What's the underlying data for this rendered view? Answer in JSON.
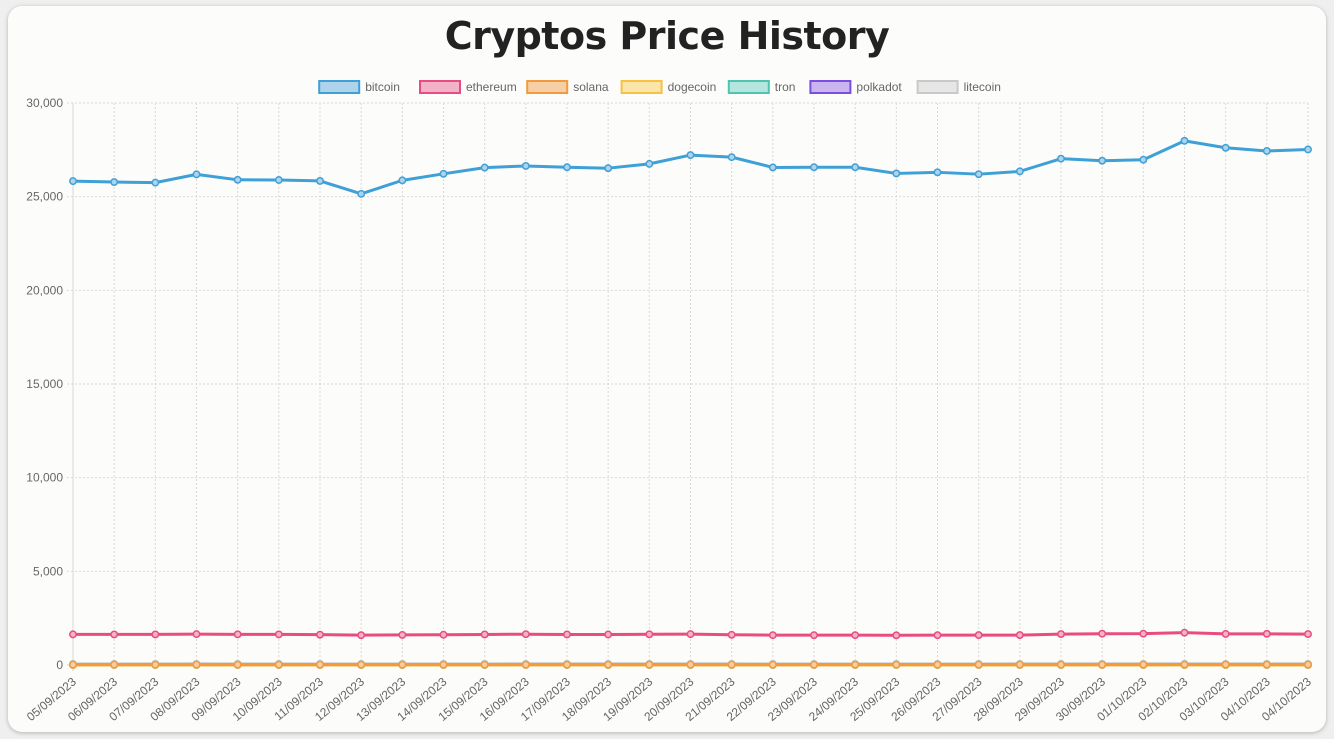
{
  "chart_data": {
    "type": "line",
    "title": "Cryptos Price History",
    "xlabel": "",
    "ylabel": "",
    "ylim": [
      0,
      30000
    ],
    "yticks": [
      "0",
      "5,000",
      "10,000",
      "15,000",
      "20,000",
      "25,000",
      "30,000"
    ],
    "ytick_values": [
      0,
      5000,
      10000,
      15000,
      20000,
      25000,
      30000
    ],
    "grid": true,
    "legend_position": "top",
    "categories": [
      "05/09/2023",
      "06/09/2023",
      "07/09/2023",
      "08/09/2023",
      "09/09/2023",
      "10/09/2023",
      "11/09/2023",
      "12/09/2023",
      "13/09/2023",
      "14/09/2023",
      "15/09/2023",
      "16/09/2023",
      "17/09/2023",
      "18/09/2023",
      "19/09/2023",
      "20/09/2023",
      "21/09/2023",
      "22/09/2023",
      "23/09/2023",
      "24/09/2023",
      "25/09/2023",
      "26/09/2023",
      "27/09/2023",
      "28/09/2023",
      "29/09/2023",
      "30/09/2023",
      "01/10/2023",
      "02/10/2023",
      "03/10/2023",
      "04/10/2023",
      "04/10/2023"
    ],
    "series": [
      {
        "name": "bitcoin",
        "color": "#3ea0d6",
        "fill": "#aed3ea",
        "values": [
          25830,
          25780,
          25750,
          26190,
          25900,
          25890,
          25840,
          25150,
          25870,
          26220,
          26550,
          26640,
          26570,
          26520,
          26750,
          27220,
          27110,
          26560,
          26570,
          26570,
          26240,
          26300,
          26200,
          26350,
          27030,
          26920,
          26970,
          27980,
          27610,
          27440,
          27520
        ]
      },
      {
        "name": "ethereum",
        "color": "#e84c82",
        "fill": "#f2b3c8",
        "values": [
          1635,
          1632,
          1632,
          1648,
          1636,
          1634,
          1620,
          1592,
          1606,
          1615,
          1631,
          1644,
          1630,
          1628,
          1640,
          1648,
          1613,
          1594,
          1593,
          1594,
          1587,
          1592,
          1598,
          1598,
          1651,
          1670,
          1672,
          1726,
          1660,
          1664,
          1651
        ]
      },
      {
        "name": "solana",
        "color": "#f29a3c",
        "fill": "#f7cfa6",
        "values": [
          20,
          20,
          19,
          20,
          19,
          19,
          18,
          18,
          18,
          19,
          19,
          19,
          19,
          19,
          20,
          20,
          20,
          19,
          19,
          19,
          19,
          20,
          21,
          22,
          22,
          22,
          23,
          24,
          23,
          23,
          23
        ]
      },
      {
        "name": "dogecoin",
        "color": "#f5c242",
        "fill": "#fbe5a8",
        "values": [
          0.06,
          0.06,
          0.06,
          0.06,
          0.06,
          0.06,
          0.06,
          0.06,
          0.06,
          0.06,
          0.06,
          0.06,
          0.06,
          0.06,
          0.06,
          0.06,
          0.06,
          0.06,
          0.06,
          0.06,
          0.06,
          0.06,
          0.06,
          0.06,
          0.06,
          0.06,
          0.06,
          0.06,
          0.06,
          0.06,
          0.06
        ]
      },
      {
        "name": "tron",
        "color": "#4fc4b0",
        "fill": "#b4e6dd",
        "values": [
          0.08,
          0.08,
          0.08,
          0.08,
          0.08,
          0.08,
          0.08,
          0.08,
          0.08,
          0.08,
          0.08,
          0.08,
          0.08,
          0.08,
          0.08,
          0.08,
          0.08,
          0.08,
          0.08,
          0.08,
          0.09,
          0.09,
          0.09,
          0.09,
          0.09,
          0.09,
          0.09,
          0.09,
          0.09,
          0.09,
          0.09
        ]
      },
      {
        "name": "polkadot",
        "color": "#7b4de0",
        "fill": "#c9b5f0",
        "values": [
          4.3,
          4.3,
          4.2,
          4.3,
          4.2,
          4.2,
          4.1,
          4.0,
          4.1,
          4.2,
          4.2,
          4.2,
          4.2,
          4.2,
          4.2,
          4.2,
          4.2,
          4.1,
          4.1,
          4.1,
          4.0,
          4.0,
          4.0,
          4.0,
          4.1,
          4.1,
          4.1,
          4.3,
          4.2,
          4.2,
          4.2
        ]
      },
      {
        "name": "litecoin",
        "color": "#c9c9c9",
        "fill": "#e6e6e6",
        "values": [
          63,
          63,
          63,
          64,
          63,
          63,
          62,
          61,
          62,
          63,
          63,
          64,
          64,
          64,
          64,
          65,
          64,
          63,
          63,
          63,
          62,
          63,
          63,
          64,
          65,
          65,
          66,
          67,
          66,
          65,
          65
        ]
      }
    ]
  }
}
